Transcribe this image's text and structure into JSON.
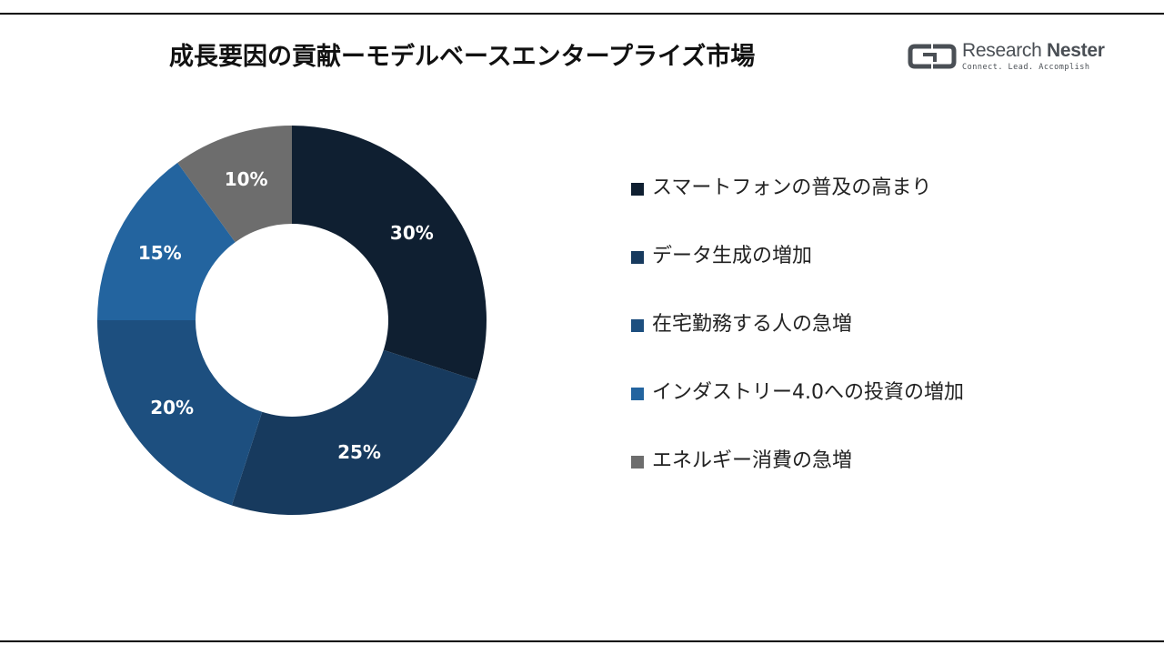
{
  "title": "成長要因の貢献ーモデルベースエンタープライズ市場",
  "logo": {
    "name_part1": "Research",
    "name_part2": "Nester",
    "tagline": "Connect. Lead. Accomplish"
  },
  "chart_data": {
    "type": "pie",
    "donut": true,
    "categories": [
      "スマートフォンの普及の高まり",
      "データ生成の増加",
      "在宅勤務する人の急増",
      "インダストリー4.0への投資の増加",
      "エネルギー消費の急増"
    ],
    "values": [
      30,
      25,
      20,
      15,
      10
    ],
    "data_labels": [
      "30%",
      "25%",
      "20%",
      "15%",
      "10%"
    ],
    "colors": [
      "#0f1f31",
      "#173a5e",
      "#1d4f7f",
      "#23649f",
      "#6d6d6d"
    ],
    "legend_position": "right"
  }
}
